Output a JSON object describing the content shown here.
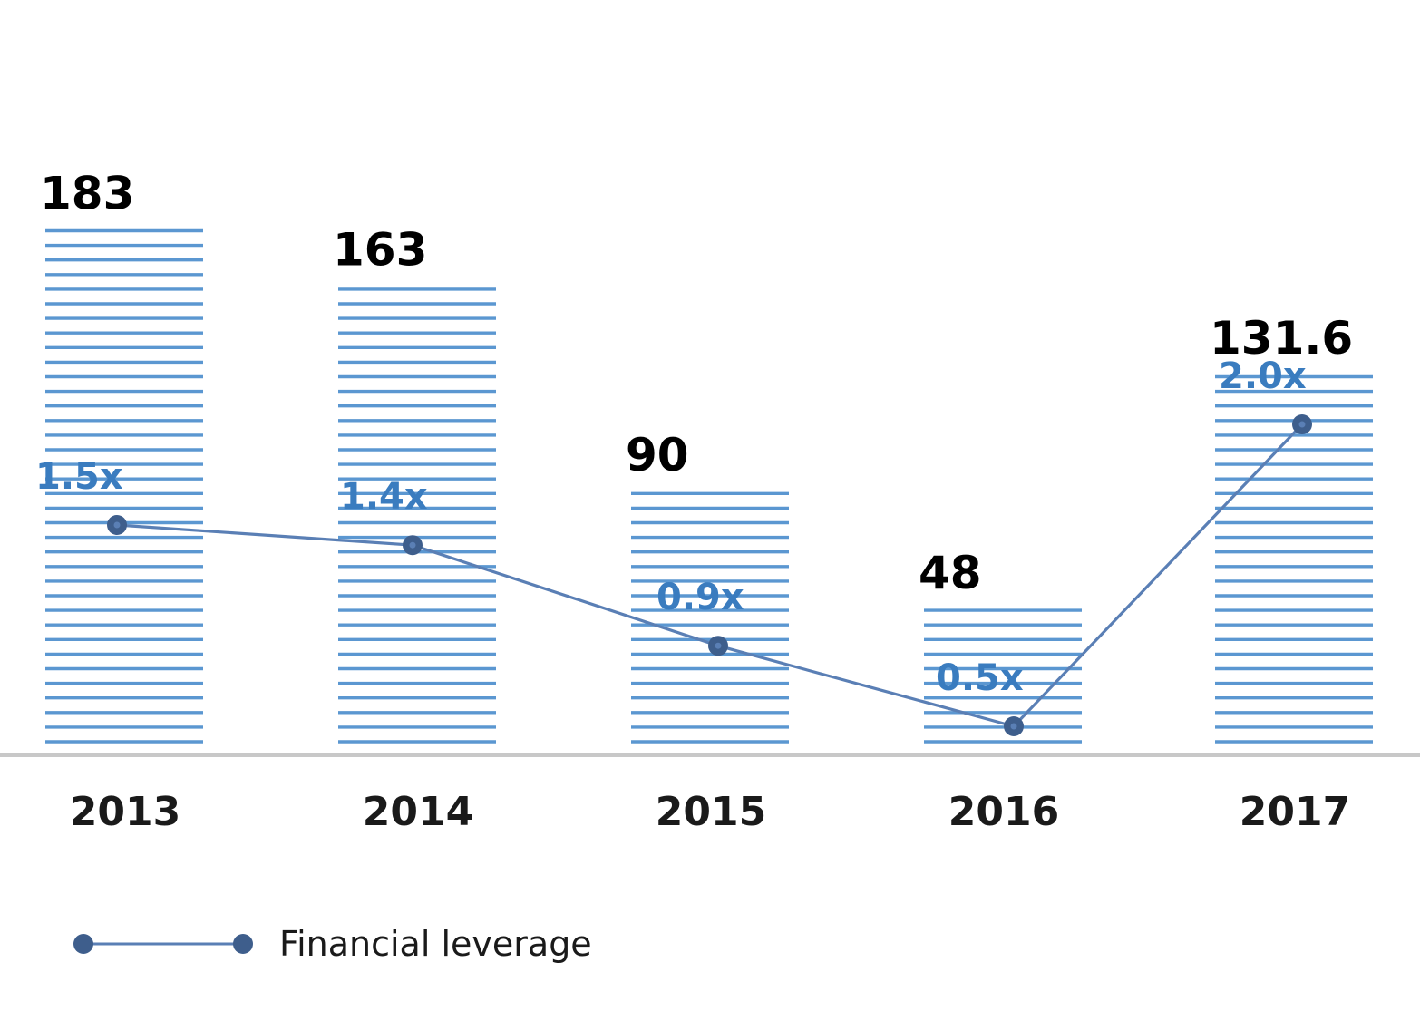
{
  "chart_data": {
    "type": "bar",
    "categories": [
      "2013",
      "2014",
      "2015",
      "2016",
      "2017"
    ],
    "bars": {
      "values": [
        183,
        163,
        90,
        48,
        131.6
      ],
      "labels": [
        "183",
        "163",
        "90",
        "48",
        "131.6"
      ]
    },
    "line_series": {
      "name": "Financial leverage",
      "values": [
        1.5,
        1.4,
        0.9,
        0.5,
        2.0
      ],
      "labels": [
        "1.5x",
        "1.4x",
        "0.9x",
        "0.5x",
        "2.0x"
      ]
    },
    "legend": {
      "label": "Financial leverage",
      "position": "bottom-left"
    },
    "title": "",
    "xlabel": "",
    "ylabel": "",
    "grid": false,
    "colors": {
      "bar_stripe": "#5b97d1",
      "line": "#5a7fb5",
      "marker": "#3e5e8c",
      "line_label": "#3a7cbf",
      "axis": "#c8c8c8"
    }
  }
}
